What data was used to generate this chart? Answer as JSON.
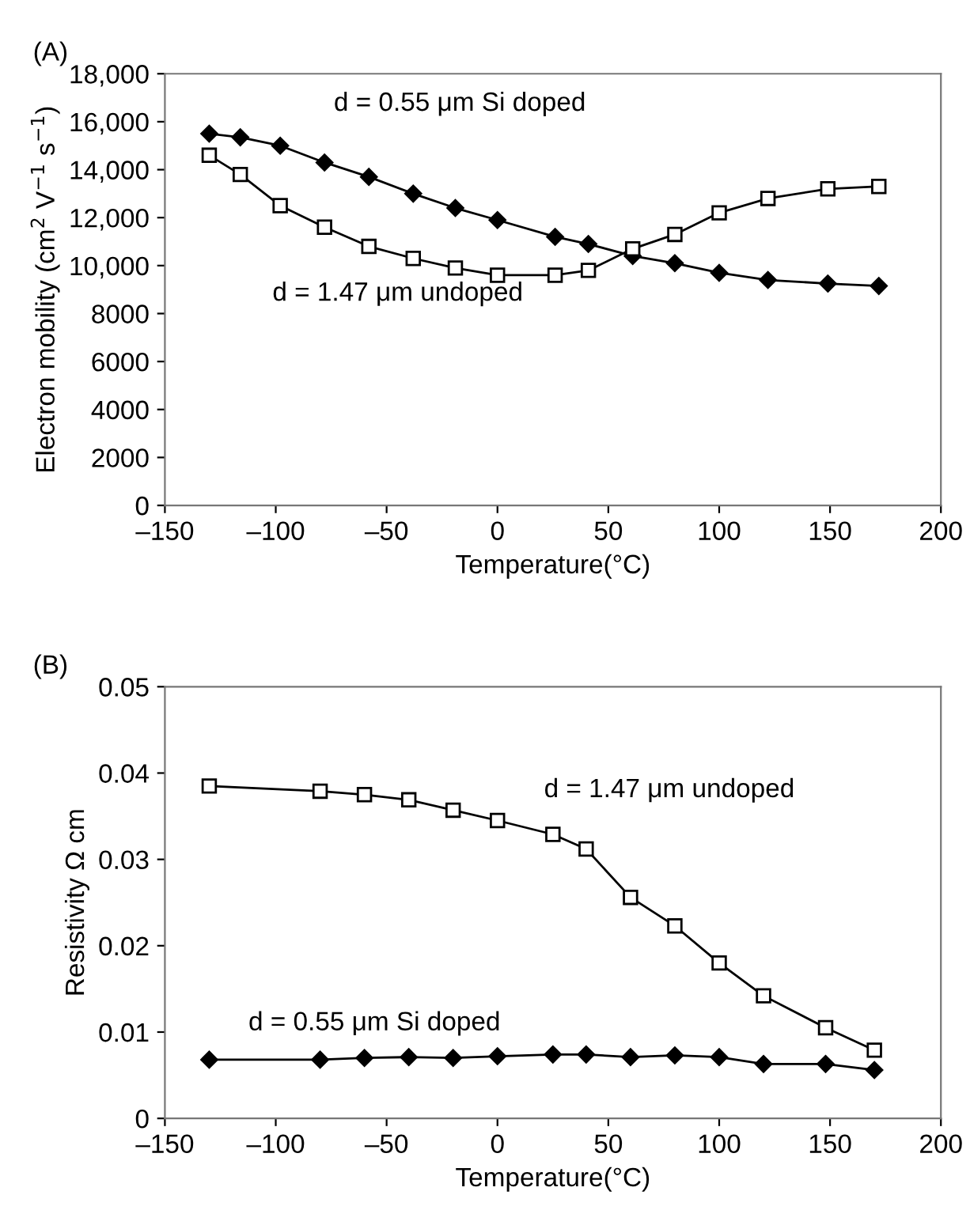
{
  "chart_data": [
    {
      "type": "line",
      "title": "(A)",
      "xlabel": "Temperature(°C)",
      "ylabel": "Electron mobility (cm$^{2}$ V$^{−1}$ s$^{−1}$)",
      "series": [
        {
          "name": "d = 0.55 μm Si doped",
          "color": "#000000",
          "marker": "diamond",
          "x": [
            -130,
            -116,
            -98,
            -78,
            -58,
            -38,
            -19,
            0,
            26,
            41,
            61,
            80,
            100,
            122,
            149,
            172
          ],
          "values": [
            15500,
            15350,
            15000,
            14300,
            13700,
            13000,
            12400,
            11900,
            11200,
            10900,
            10400,
            10100,
            9700,
            9400,
            9250,
            9150
          ]
        },
        {
          "name": "d = 1.47 μm undoped",
          "color": "#000000",
          "marker": "square",
          "x": [
            -130,
            -116,
            -98,
            -78,
            -58,
            -38,
            -19,
            0,
            26,
            41,
            61,
            80,
            100,
            122,
            149,
            172
          ],
          "values": [
            14600,
            13800,
            12500,
            11600,
            10800,
            10300,
            9900,
            9600,
            9600,
            9800,
            10700,
            11300,
            12200,
            12800,
            13200,
            13300
          ]
        }
      ],
      "xlim": [
        -150,
        200
      ],
      "xticks": [
        {
          "value": -150,
          "label": "–150"
        },
        {
          "value": -100,
          "label": "–100"
        },
        {
          "value": -50,
          "label": "–50"
        },
        0,
        50,
        100,
        150,
        200
      ],
      "ylim": [
        0,
        18000
      ],
      "yticks": [
        0,
        2000,
        4000,
        6000,
        8000,
        {
          "value": 10000,
          "label": "10,000"
        },
        {
          "value": 12000,
          "label": "12,000"
        },
        {
          "value": 14000,
          "label": "14,000"
        },
        {
          "value": 16000,
          "label": "16,000"
        },
        {
          "value": 18000,
          "label": "18,000"
        }
      ]
    },
    {
      "type": "line",
      "title": "(B)",
      "xlabel": "Temperature(°C)",
      "ylabel": "Resistivity Ω cm",
      "series": [
        {
          "name": "d = 1.47 μm undoped",
          "color": "#000000",
          "marker": "square",
          "x": [
            -130,
            -80,
            -60,
            -40,
            -20,
            0,
            25,
            40,
            60,
            80,
            100,
            120,
            148,
            170
          ],
          "values": [
            0.0385,
            0.0379,
            0.0375,
            0.0369,
            0.0357,
            0.0345,
            0.0329,
            0.0312,
            0.0256,
            0.0223,
            0.018,
            0.0142,
            0.0105,
            0.0079
          ]
        },
        {
          "name": "d = 0.55 μm Si doped",
          "color": "#000000",
          "marker": "diamond",
          "x": [
            -130,
            -80,
            -60,
            -40,
            -20,
            0,
            25,
            40,
            60,
            80,
            100,
            120,
            148,
            170
          ],
          "values": [
            0.0068,
            0.0068,
            0.007,
            0.0071,
            0.007,
            0.0072,
            0.0074,
            0.0074,
            0.0071,
            0.0073,
            0.0071,
            0.0063,
            0.0063,
            0.0056
          ]
        }
      ],
      "xlim": [
        -150,
        200
      ],
      "xticks": [
        {
          "value": -150,
          "label": "–150"
        },
        {
          "value": -100,
          "label": "–100"
        },
        {
          "value": -50,
          "label": "–50"
        },
        0,
        50,
        100,
        150,
        200
      ],
      "ylim": [
        0,
        0.05
      ],
      "yticks": [
        0,
        0.01,
        0.02,
        0.03,
        0.04,
        0.05
      ]
    }
  ]
}
